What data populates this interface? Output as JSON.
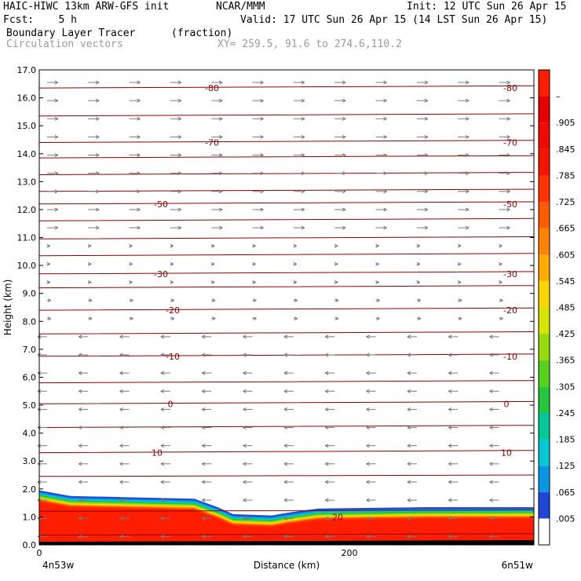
{
  "header": {
    "title_left": "HAIC-HIWC 13km ARW-GFS init",
    "org": "NCAR/MMM",
    "init": "Init: 12 UTC Sun 26 Apr 15",
    "fcst": "Fcst:    5 h",
    "valid": "Valid: 17 UTC Sun 26 Apr 15 (14 LST Sun 26 Apr 15)",
    "field": "Boundary Layer Tracer",
    "units": "(fraction)",
    "field2": "Circulation vectors",
    "xy": "XY= 259.5, 91.6 to 274.6,110.2"
  },
  "chart_data": {
    "type": "heatmap",
    "xlabel": "Distance (km)",
    "ylabel": "Height (km)",
    "ylim": [
      0,
      17
    ],
    "xlim": [
      0,
      319
    ],
    "y_ticks": [
      "0.0",
      "1.0",
      "2.0",
      "3.0",
      "4.0",
      "5.0",
      "6.0",
      "7.0",
      "8.0",
      "9.0",
      "10.0",
      "11.0",
      "12.0",
      "13.0",
      "14.0",
      "15.0",
      "16.0",
      "17.0"
    ],
    "x_ticks": [
      "0",
      "200"
    ],
    "x_end_labels": {
      "left": "4n53w",
      "right": "6n51w"
    },
    "colorbar": {
      "labels": [
        ".005",
        ".065",
        ".125",
        ".185",
        ".245",
        ".305",
        ".365",
        ".425",
        ".485",
        ".545",
        ".605",
        ".665",
        ".725",
        ".785",
        ".845",
        ".905",
        "–"
      ],
      "colors": [
        "#ffffff",
        "#1f46d7",
        "#0a96e6",
        "#05c8d2",
        "#00c896",
        "#23c83c",
        "#55d219",
        "#96dc0a",
        "#d7e600",
        "#ffd700",
        "#ffaa00",
        "#ff8200",
        "#ff5a00",
        "#ff3200",
        "#f51400",
        "#f00a00",
        "#e60000",
        "#ff1e00"
      ]
    },
    "isotherm_labels": [
      "-80",
      "-70",
      "-50",
      "-30",
      "-20",
      "-10",
      "0",
      "10",
      "20"
    ],
    "boundary_layer_top_km": [
      {
        "x": 0,
        "y": 1.95
      },
      {
        "x": 20,
        "y": 1.75
      },
      {
        "x": 60,
        "y": 1.7
      },
      {
        "x": 100,
        "y": 1.65
      },
      {
        "x": 115,
        "y": 1.35
      },
      {
        "x": 125,
        "y": 1.1
      },
      {
        "x": 150,
        "y": 1.05
      },
      {
        "x": 160,
        "y": 1.15
      },
      {
        "x": 180,
        "y": 1.3
      },
      {
        "x": 250,
        "y": 1.35
      },
      {
        "x": 319,
        "y": 1.35
      }
    ],
    "grid": false
  }
}
